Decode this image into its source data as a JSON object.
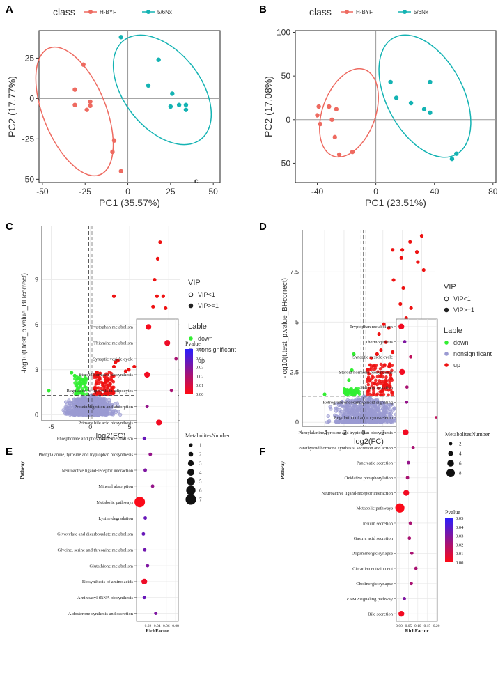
{
  "figure": {
    "panels": [
      "A",
      "B",
      "C",
      "D",
      "E",
      "F"
    ],
    "stray_label": "c"
  },
  "colors": {
    "hbyf": "#ee6a60",
    "nx": "#14b3b3",
    "down": "#33ee33",
    "nonsig": "#9a9ad2",
    "up": "#ee1111"
  },
  "chart_data": [
    {
      "id": "A",
      "type": "scatter",
      "legend_title": "class",
      "legend": [
        "H-BYF",
        "5/6Nx"
      ],
      "xlabel": "PC1 (35.57%)",
      "ylabel": "PC2 (17.77%)",
      "xlim": [
        -52,
        54
      ],
      "ylim": [
        -52,
        42
      ],
      "xticks": [
        -50,
        -25,
        0,
        25,
        50
      ],
      "yticks": [
        -50,
        -25,
        0,
        25
      ],
      "series": [
        {
          "name": "H-BYF",
          "points": [
            [
              -26,
              21
            ],
            [
              -31,
              5.5
            ],
            [
              -31,
              -4
            ],
            [
              -22,
              -2
            ],
            [
              -22,
              -4.5
            ],
            [
              -24,
              -7
            ],
            [
              -8,
              -26
            ],
            [
              -9,
              -33
            ],
            [
              -4,
              -45
            ]
          ]
        },
        {
          "name": "5/6Nx",
          "points": [
            [
              -4,
              38
            ],
            [
              18,
              24
            ],
            [
              12,
              8
            ],
            [
              26,
              3
            ],
            [
              25,
              -5
            ],
            [
              30,
              -4
            ],
            [
              34,
              -4
            ],
            [
              34,
              -7
            ]
          ]
        }
      ]
    },
    {
      "id": "B",
      "type": "scatter",
      "legend_title": "class",
      "legend": [
        "H-BYF",
        "5/6Nx"
      ],
      "xlabel": "PC1 (23.51%)",
      "ylabel": "PC2 (17.08%)",
      "xlim": [
        -55,
        82
      ],
      "ylim": [
        -72,
        102
      ],
      "xticks": [
        -40,
        0,
        40,
        80
      ],
      "yticks": [
        -50,
        0,
        50,
        100
      ],
      "series": [
        {
          "name": "H-BYF",
          "points": [
            [
              -40,
              5
            ],
            [
              -39,
              15
            ],
            [
              -32,
              15
            ],
            [
              -38,
              -5
            ],
            [
              -27,
              12
            ],
            [
              -30,
              0
            ],
            [
              -28,
              -20
            ],
            [
              -25,
              -40
            ],
            [
              -16,
              -37
            ]
          ]
        },
        {
          "name": "5/6Nx",
          "points": [
            [
              10,
              43
            ],
            [
              14,
              25
            ],
            [
              24,
              19
            ],
            [
              33,
              12
            ],
            [
              37,
              43
            ],
            [
              37,
              8
            ],
            [
              52,
              -45
            ],
            [
              55,
              -39
            ]
          ]
        }
      ]
    },
    {
      "id": "C",
      "type": "scatter",
      "xlabel": "log2(FC)",
      "ylabel": "-log10(t.test_p.value_BHcorrect)",
      "xlim": [
        -6.2,
        11.4
      ],
      "ylim": [
        -0.4,
        12.6
      ],
      "xticks": [
        -5,
        0,
        5,
        10
      ],
      "yticks": [
        0,
        3,
        6,
        9
      ],
      "vlines": [
        -0.2,
        0.1,
        0.3
      ],
      "hline": 1.3,
      "legend_vip_title": "VIP",
      "legend_vip": [
        "VIP<1",
        "VIP>=1"
      ],
      "legend_label_title": "Lable",
      "legend_label": [
        "down",
        "nonsignificant",
        "up"
      ],
      "up_points": [
        [
          8.9,
          11.5
        ],
        [
          8.6,
          10.4
        ],
        [
          8.2,
          9.0
        ],
        [
          8.5,
          7.9
        ],
        [
          9.3,
          7.9
        ],
        [
          9.6,
          7.1
        ],
        [
          9.8,
          6.0
        ],
        [
          9.0,
          5.6
        ],
        [
          9.9,
          5.1
        ],
        [
          3.0,
          7.9
        ],
        [
          8.0,
          7.2
        ],
        [
          7.8,
          5.6
        ],
        [
          8.8,
          4.8
        ],
        [
          7.5,
          4.4
        ],
        [
          9.3,
          4.3
        ],
        [
          6.8,
          4.0
        ],
        [
          7.5,
          3.9
        ],
        [
          7.0,
          3.5
        ],
        [
          7.6,
          3.4
        ],
        [
          6.2,
          3.6
        ],
        [
          5.6,
          3.2
        ],
        [
          4.9,
          3.0
        ],
        [
          4.5,
          2.9
        ],
        [
          3.5,
          3.6
        ],
        [
          3.2,
          3.5
        ],
        [
          3.0,
          3.2
        ],
        [
          7.3,
          2.1
        ],
        [
          7.0,
          1.8
        ],
        [
          6.8,
          1.5
        ]
      ],
      "down_points": [
        [
          -5.3,
          1.6
        ],
        [
          -2.4,
          2.8
        ],
        [
          -2.0,
          2.6
        ],
        [
          -1.6,
          2.4
        ]
      ]
    },
    {
      "id": "D",
      "type": "scatter",
      "xlabel": "log2(FC)",
      "ylabel": "-log10(t.test_p.value_BHcorrect)",
      "xlim": [
        -6.3,
        7.4
      ],
      "ylim": [
        -0.2,
        9.6
      ],
      "xticks": [
        -4,
        -2,
        0,
        2,
        4,
        6
      ],
      "yticks": [
        0.0,
        2.5,
        5.0,
        7.5
      ],
      "vlines": [
        -0.25,
        0.0,
        0.25
      ],
      "hline": 1.3,
      "legend_vip_title": "VIP",
      "legend_vip": [
        "VIP<1",
        "VIP>=1"
      ],
      "legend_label_title": "Lable",
      "legend_label": [
        "down",
        "nonsignificant",
        "up"
      ],
      "up_points": [
        [
          6.0,
          9.3
        ],
        [
          4.8,
          9.0
        ],
        [
          4.0,
          8.6
        ],
        [
          3.0,
          8.6
        ],
        [
          5.5,
          8.5
        ],
        [
          3.9,
          8.2
        ],
        [
          5.6,
          8.0
        ],
        [
          6.2,
          7.6
        ],
        [
          3.1,
          7.1
        ],
        [
          4.1,
          6.7
        ],
        [
          3.8,
          5.9
        ],
        [
          4.9,
          5.7
        ],
        [
          4.4,
          5.2
        ],
        [
          4.6,
          4.6
        ],
        [
          3.8,
          4.9
        ],
        [
          2.1,
          4.9
        ],
        [
          2.6,
          4.7
        ],
        [
          1.6,
          4.4
        ],
        [
          5.5,
          4.3
        ],
        [
          4.3,
          4.3
        ],
        [
          3.6,
          4.1
        ],
        [
          2.3,
          4.0
        ],
        [
          4.6,
          3.5
        ],
        [
          5.2,
          3.0
        ],
        [
          1.8,
          3.6
        ],
        [
          1.4,
          3.4
        ],
        [
          0.8,
          3.2
        ],
        [
          3.0,
          3.5
        ],
        [
          3.7,
          3.0
        ],
        [
          2.7,
          2.9
        ]
      ],
      "down_points": [
        [
          -1.0,
          3.4
        ],
        [
          -1.2,
          2.6
        ],
        [
          -1.5,
          2.1
        ],
        [
          -4.0,
          1.4
        ]
      ]
    },
    {
      "id": "E",
      "type": "bubble",
      "ylabel": "Pathway",
      "xlabel": "RichFactor",
      "xlim": [
        -0.005,
        0.086
      ],
      "xticks": [
        0.02,
        0.04,
        0.06,
        0.08
      ],
      "xtick_labels": [
        "0.02",
        "0.04",
        "0.06",
        "0.08"
      ],
      "pvalue_title": "Pvalue",
      "pvalue_ticks": [
        "0.05",
        "0.04",
        "0.03",
        "0.02",
        "0.01",
        "0.00"
      ],
      "size_title": "MetabolitesNumber",
      "size_ticks": [
        "1",
        "2",
        "3",
        "4",
        "5",
        "6",
        "7"
      ],
      "pathways": [
        {
          "name": "Tryptophan metabolism",
          "rf": 0.021,
          "n": 3,
          "p": 0.002
        },
        {
          "name": "Thiamine metabolism",
          "rf": 0.062,
          "n": 3,
          "p": 0.004
        },
        {
          "name": "Synaptic vesicle cycle",
          "rf": 0.081,
          "n": 1,
          "p": 0.02
        },
        {
          "name": "Steroid hormone biosynthesis",
          "rf": 0.018,
          "n": 3,
          "p": 0.003
        },
        {
          "name": "Regulation of lipolysis in adipocytes",
          "rf": 0.071,
          "n": 1,
          "p": 0.02
        },
        {
          "name": "Protein digestion and absorption",
          "rf": 0.018,
          "n": 1,
          "p": 0.025
        },
        {
          "name": "Primary bile acid biosynthesis",
          "rf": 0.044,
          "n": 3,
          "p": 0.003
        },
        {
          "name": "Phosphonate and phosphinate metabolism",
          "rf": 0.012,
          "n": 1,
          "p": 0.035
        },
        {
          "name": "Phenylalanine, tyrosine and tryptophan biosynthesis",
          "rf": 0.025,
          "n": 1,
          "p": 0.025
        },
        {
          "name": "Neuroactive ligand-receptor interaction",
          "rf": 0.014,
          "n": 1,
          "p": 0.03
        },
        {
          "name": "Mineral absorption",
          "rf": 0.03,
          "n": 1,
          "p": 0.025
        },
        {
          "name": "Metabolic pathways",
          "rf": 0.002,
          "n": 7,
          "p": 0.001
        },
        {
          "name": "Lysine degradation",
          "rf": 0.014,
          "n": 1,
          "p": 0.035
        },
        {
          "name": "Glyoxylate and dicarboxylate metabolism",
          "rf": 0.01,
          "n": 1,
          "p": 0.035
        },
        {
          "name": "Glycine, serine and threonine metabolism",
          "rf": 0.013,
          "n": 1,
          "p": 0.033
        },
        {
          "name": "Glutathione metabolism",
          "rf": 0.019,
          "n": 1,
          "p": 0.03
        },
        {
          "name": "Biosynthesis of amino acids",
          "rf": 0.012,
          "n": 3,
          "p": 0.004
        },
        {
          "name": "Aminoacyl-tRNA biosynthesis",
          "rf": 0.012,
          "n": 1,
          "p": 0.035
        },
        {
          "name": "Aldosterone synthesis and secretion",
          "rf": 0.037,
          "n": 1,
          "p": 0.03
        }
      ]
    },
    {
      "id": "F",
      "type": "bubble",
      "ylabel": "Pathway",
      "xlabel": "RichFactor",
      "xlim": [
        -0.015,
        0.205
      ],
      "xticks": [
        0.0,
        0.05,
        0.1,
        0.15,
        0.2
      ],
      "xtick_labels": [
        "0.00",
        "0.05",
        "0.10",
        "0.15",
        "0.20"
      ],
      "size_title": "MetabolitesNumber",
      "size_ticks": [
        "2",
        "4",
        "6",
        "8"
      ],
      "pvalue_title": "Pvalue",
      "pvalue_ticks": [
        "0.05",
        "0.04",
        "0.03",
        "0.02",
        "0.01",
        "0.00"
      ],
      "pathways": [
        {
          "name": "Tryptophan metabolism",
          "rf": 0.012,
          "n": 5,
          "p": 0.003
        },
        {
          "name": "Thermogenesis",
          "rf": 0.03,
          "n": 2,
          "p": 0.03
        },
        {
          "name": "Synaptic vesicle cycle",
          "rf": 0.062,
          "n": 2,
          "p": 0.015
        },
        {
          "name": "Steroid hormone biosynthesis",
          "rf": 0.016,
          "n": 5,
          "p": 0.003
        },
        {
          "name": "Salivary secretion",
          "rf": 0.042,
          "n": 2,
          "p": 0.02
        },
        {
          "name": "Retrograde endocannabinoid signaling",
          "rf": 0.04,
          "n": 2,
          "p": 0.025
        },
        {
          "name": "Regulation of actin cytoskeleton",
          "rf": 0.198,
          "n": 1,
          "p": 0.015
        },
        {
          "name": "Phenylalanine, tyrosine and tryptophan biosynthesis",
          "rf": 0.035,
          "n": 5,
          "p": 0.003
        },
        {
          "name": "Parathyroid hormone synthesis, secretion and action",
          "rf": 0.075,
          "n": 2,
          "p": 0.02
        },
        {
          "name": "Pancreatic secretion",
          "rf": 0.05,
          "n": 2,
          "p": 0.025
        },
        {
          "name": "Oxidative phosphorylation",
          "rf": 0.045,
          "n": 2,
          "p": 0.02
        },
        {
          "name": "Neuroactive ligand-receptor interaction",
          "rf": 0.038,
          "n": 5,
          "p": 0.003
        },
        {
          "name": "Metabolic pathways",
          "rf": 0.004,
          "n": 9,
          "p": 0.001
        },
        {
          "name": "Insulin secretion",
          "rf": 0.06,
          "n": 2,
          "p": 0.02
        },
        {
          "name": "Gastric acid secretion",
          "rf": 0.055,
          "n": 2,
          "p": 0.02
        },
        {
          "name": "Dopaminergic synapse",
          "rf": 0.068,
          "n": 2,
          "p": 0.02
        },
        {
          "name": "Circadian entrainment",
          "rf": 0.09,
          "n": 2,
          "p": 0.02
        },
        {
          "name": "Cholinergic synapse",
          "rf": 0.065,
          "n": 2,
          "p": 0.02
        },
        {
          "name": "cAMP signaling pathway",
          "rf": 0.028,
          "n": 2,
          "p": 0.03
        },
        {
          "name": "Bile secretion",
          "rf": 0.012,
          "n": 5,
          "p": 0.003
        }
      ]
    }
  ]
}
